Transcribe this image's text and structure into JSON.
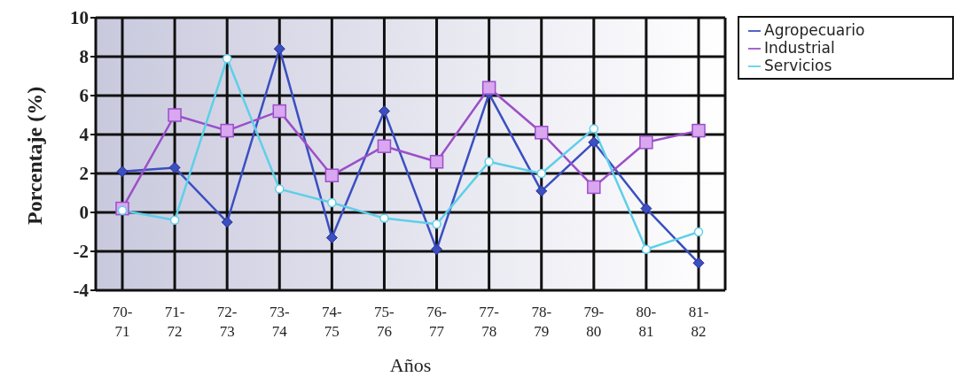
{
  "chart_data": {
    "type": "line",
    "xlabel": "Años",
    "ylabel": "Porcentaje (%)",
    "categories": [
      "70-71",
      "71-72",
      "72-73",
      "73-74",
      "74-75",
      "75-76",
      "76-77",
      "77-78",
      "78-79",
      "79-80",
      "80-81",
      "81-82"
    ],
    "series": [
      {
        "name": "Agropecuario",
        "color": "#3a4fc0",
        "marker": "diamond",
        "values": [
          2.1,
          2.3,
          -0.5,
          8.4,
          -1.3,
          5.2,
          -1.9,
          6.1,
          1.1,
          3.6,
          0.2,
          -2.6
        ]
      },
      {
        "name": "Industrial",
        "color": "#9b4fc8",
        "marker": "square",
        "values": [
          0.2,
          5.0,
          4.2,
          5.2,
          1.9,
          3.4,
          2.6,
          6.4,
          4.1,
          1.3,
          3.6,
          4.2
        ]
      },
      {
        "name": "Servicios",
        "color": "#5ecfe8",
        "marker": "circle",
        "values": [
          0.1,
          -0.4,
          7.9,
          1.2,
          0.5,
          -0.3,
          -0.6,
          2.6,
          2.0,
          4.3,
          -1.9,
          -1.0
        ]
      }
    ],
    "ylim": [
      -4,
      10
    ],
    "yticks": [
      -4,
      -2,
      0,
      2,
      4,
      6,
      8,
      10
    ],
    "grid": true,
    "legend": "top right",
    "line_style": "solid"
  }
}
